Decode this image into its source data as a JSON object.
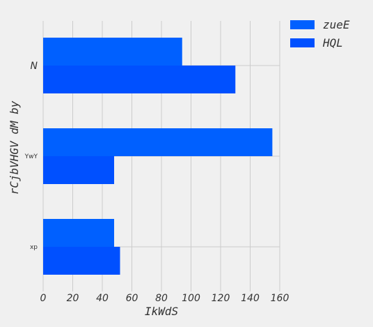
{
  "chart_data": {
    "type": "bar",
    "orientation": "horizontal",
    "categories": [
      "N",
      "YwY",
      "xp"
    ],
    "series": [
      {
        "name": "zueE",
        "values": [
          94,
          155,
          48
        ],
        "color": "#0060ff"
      },
      {
        "name": "HQL",
        "values": [
          130,
          48,
          52
        ],
        "color": "#0050ff"
      }
    ],
    "xlabel": "IkWdS",
    "ylabel": "rCjbVHGV dM by",
    "xlim": [
      0,
      160
    ],
    "xticks": [
      "0",
      "20",
      "40",
      "60",
      "80",
      "100",
      "120",
      "140",
      "160"
    ],
    "grid": true,
    "legend_position": "top-right, outside plot"
  }
}
